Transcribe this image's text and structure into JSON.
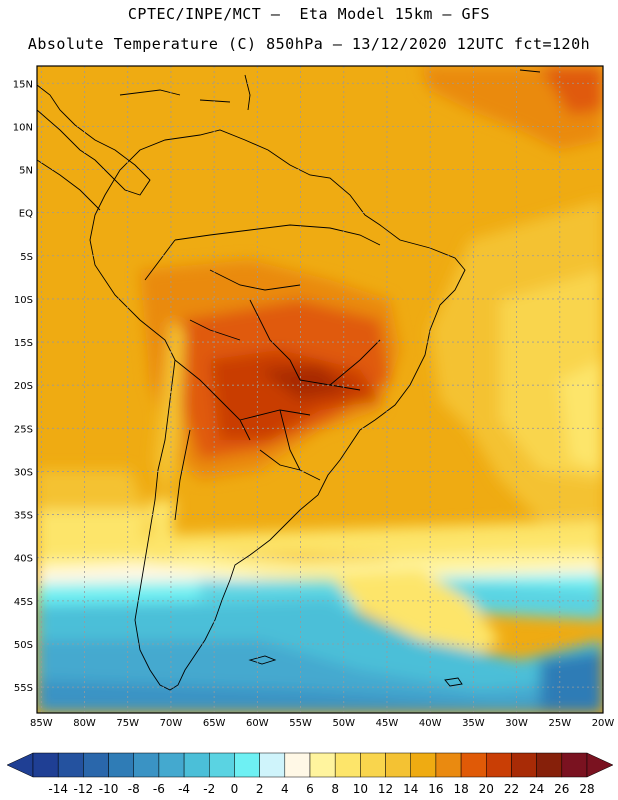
{
  "header": {
    "line1": "CPTEC/INPE/MCT –  Eta Model 15km – GFS",
    "line2": "Absolute Temperature (C) 850hPa – 13/12/2020 12UTC fct=120h"
  },
  "map": {
    "lat_labels": [
      "15N",
      "10N",
      "5N",
      "EQ",
      "5S",
      "10S",
      "15S",
      "20S",
      "25S",
      "30S",
      "35S",
      "40S",
      "45S",
      "50S",
      "55S"
    ],
    "lon_labels": [
      "85W",
      "80W",
      "75W",
      "70W",
      "65W",
      "60W",
      "55W",
      "50W",
      "45W",
      "40W",
      "35W",
      "30W",
      "25W",
      "20W"
    ],
    "lat_range": [
      17,
      -58
    ],
    "lon_range": [
      -85.5,
      -20
    ]
  },
  "colorbar": {
    "labels": [
      "-14",
      "-12",
      "-10",
      "-8",
      "-6",
      "-4",
      "-2",
      "0",
      "2",
      "4",
      "6",
      "8",
      "10",
      "12",
      "14",
      "16",
      "18",
      "20",
      "22",
      "24",
      "26",
      "28"
    ],
    "colors": [
      "#1f3f94",
      "#24529f",
      "#2a67ab",
      "#2f7cb6",
      "#3a93c4",
      "#44a9cf",
      "#4bbfd8",
      "#5ad3e2",
      "#6ef0f3",
      "#cff4fb",
      "#fff8e6",
      "#fff49e",
      "#fde56a",
      "#f9d54d",
      "#f4c233",
      "#efab12",
      "#ea8a10",
      "#e05a07",
      "#c93e05",
      "#a82b06",
      "#86200a",
      "#7a1220"
    ]
  },
  "colors": {
    "land_outline": "#000000",
    "grid": "#9a9a9a"
  }
}
